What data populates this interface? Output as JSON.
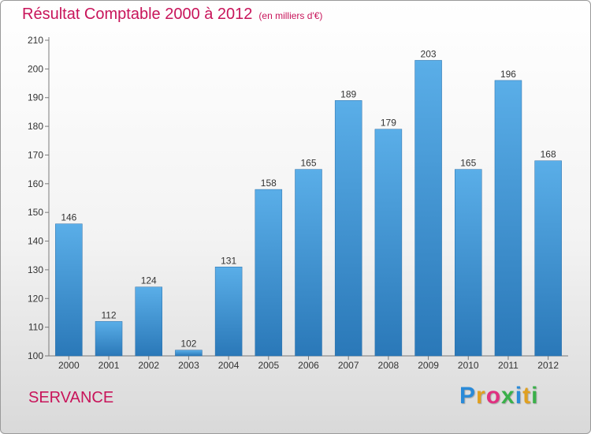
{
  "header": {
    "title": "Résultat Comptable 2000 à 2012",
    "unit_note": "(en milliers d'€)"
  },
  "footer": {
    "place": "SERVANCE",
    "brand": "Proxiti"
  },
  "colors": {
    "title": "#c8145a",
    "bar_top": "#5aaee8",
    "bar_bottom": "#2a78b8",
    "brand_letters": [
      "#2a8ad8",
      "#e0a020",
      "#e03080",
      "#3ab04a",
      "#2a8ad8",
      "#e0a020",
      "#3ab04a"
    ]
  },
  "chart_data": {
    "type": "bar",
    "title": "Résultat Comptable 2000 à 2012",
    "subtitle": "(en milliers d'€)",
    "categories": [
      "2000",
      "2001",
      "2002",
      "2003",
      "2004",
      "2005",
      "2006",
      "2007",
      "2008",
      "2009",
      "2010",
      "2011",
      "2012"
    ],
    "values": [
      146,
      112,
      124,
      102,
      131,
      158,
      165,
      189,
      179,
      203,
      165,
      196,
      168
    ],
    "ylim": [
      100,
      210
    ],
    "yticks": [
      100,
      110,
      120,
      130,
      140,
      150,
      160,
      170,
      180,
      190,
      200,
      210
    ],
    "grid": false,
    "legend": "none"
  }
}
